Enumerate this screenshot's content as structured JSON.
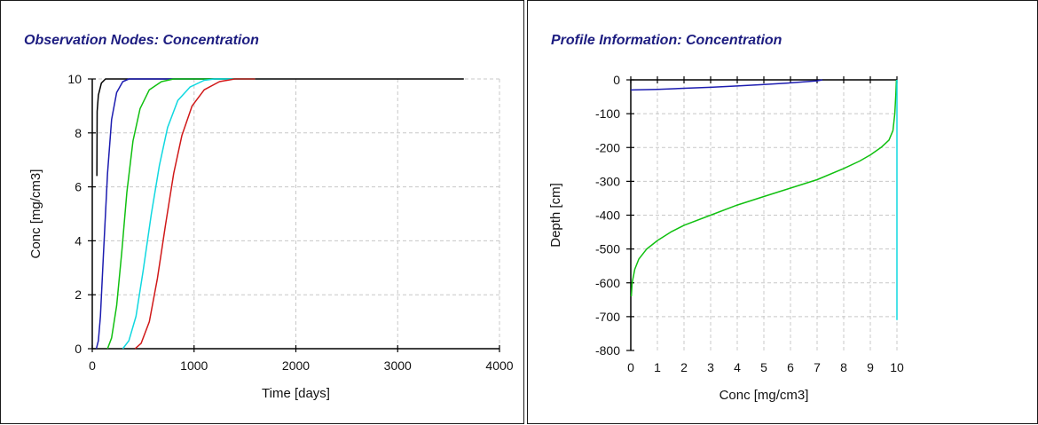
{
  "chart_data": [
    {
      "type": "line",
      "title": "Observation Nodes: Concentration",
      "xlabel": "Time [days]",
      "ylabel": "Conc [mg/cm3]",
      "xlim": [
        0,
        4000
      ],
      "ylim": [
        0,
        10
      ],
      "x_ticks": [
        0,
        1000,
        2000,
        3000,
        4000
      ],
      "y_ticks": [
        0,
        2,
        4,
        6,
        8,
        10
      ],
      "grid": true,
      "series": [
        {
          "color": "#000000",
          "points": [
            [
              45,
              6.4
            ],
            [
              48,
              8.8
            ],
            [
              60,
              9.4
            ],
            [
              90,
              9.85
            ],
            [
              130,
              10
            ],
            [
              3650,
              10
            ]
          ]
        },
        {
          "color": "#1c1cb0",
          "points": [
            [
              40,
              0
            ],
            [
              60,
              0.3
            ],
            [
              80,
              1.2
            ],
            [
              110,
              3.5
            ],
            [
              150,
              6.5
            ],
            [
              190,
              8.5
            ],
            [
              240,
              9.5
            ],
            [
              300,
              9.9
            ],
            [
              360,
              10
            ],
            [
              1600,
              10
            ]
          ]
        },
        {
          "color": "#10c010",
          "points": [
            [
              150,
              0
            ],
            [
              190,
              0.4
            ],
            [
              240,
              1.6
            ],
            [
              290,
              3.6
            ],
            [
              340,
              5.8
            ],
            [
              400,
              7.7
            ],
            [
              470,
              8.9
            ],
            [
              560,
              9.6
            ],
            [
              680,
              9.9
            ],
            [
              800,
              10
            ],
            [
              1600,
              10
            ]
          ]
        },
        {
          "color": "#10d8e0",
          "points": [
            [
              300,
              0
            ],
            [
              360,
              0.3
            ],
            [
              430,
              1.2
            ],
            [
              500,
              2.9
            ],
            [
              580,
              5.0
            ],
            [
              660,
              6.8
            ],
            [
              740,
              8.2
            ],
            [
              840,
              9.2
            ],
            [
              960,
              9.7
            ],
            [
              1100,
              9.95
            ],
            [
              1200,
              10
            ],
            [
              1600,
              10
            ]
          ]
        },
        {
          "color": "#d01818",
          "points": [
            [
              420,
              0
            ],
            [
              480,
              0.2
            ],
            [
              560,
              1.0
            ],
            [
              640,
              2.6
            ],
            [
              720,
              4.6
            ],
            [
              800,
              6.5
            ],
            [
              880,
              7.9
            ],
            [
              980,
              9.0
            ],
            [
              1100,
              9.6
            ],
            [
              1250,
              9.9
            ],
            [
              1400,
              10
            ],
            [
              1600,
              10
            ]
          ]
        }
      ]
    },
    {
      "type": "line",
      "title": "Profile Information:  Concentration",
      "xlabel": "Conc [mg/cm3]",
      "ylabel": "Depth [cm]",
      "xlim": [
        0,
        10
      ],
      "ylim": [
        -800,
        0
      ],
      "x_ticks": [
        0,
        1,
        2,
        3,
        4,
        5,
        6,
        7,
        8,
        9,
        10
      ],
      "y_ticks": [
        0,
        -100,
        -200,
        -300,
        -400,
        -500,
        -600,
        -700,
        -800
      ],
      "grid": true,
      "series": [
        {
          "color": "#1c1cb0",
          "points": [
            [
              0,
              -30
            ],
            [
              1,
              -28
            ],
            [
              2,
              -25
            ],
            [
              3,
              -22
            ],
            [
              4,
              -18
            ],
            [
              5,
              -14
            ],
            [
              6,
              -9
            ],
            [
              7,
              -3
            ],
            [
              7.2,
              0
            ]
          ]
        },
        {
          "color": "#10c010",
          "points": [
            [
              0.02,
              -640
            ],
            [
              0.05,
              -600
            ],
            [
              0.15,
              -560
            ],
            [
              0.3,
              -530
            ],
            [
              0.6,
              -500
            ],
            [
              1,
              -475
            ],
            [
              1.5,
              -450
            ],
            [
              2,
              -430
            ],
            [
              3,
              -400
            ],
            [
              4,
              -370
            ],
            [
              5,
              -345
            ],
            [
              6,
              -320
            ],
            [
              7,
              -295
            ],
            [
              8,
              -262
            ],
            [
              8.6,
              -240
            ],
            [
              9,
              -222
            ],
            [
              9.4,
              -200
            ],
            [
              9.7,
              -178
            ],
            [
              9.85,
              -150
            ],
            [
              9.92,
              -100
            ],
            [
              9.96,
              -40
            ],
            [
              9.98,
              0
            ]
          ]
        },
        {
          "color": "#10d8e0",
          "points": [
            [
              10,
              -710
            ],
            [
              10,
              0
            ]
          ]
        }
      ]
    }
  ]
}
